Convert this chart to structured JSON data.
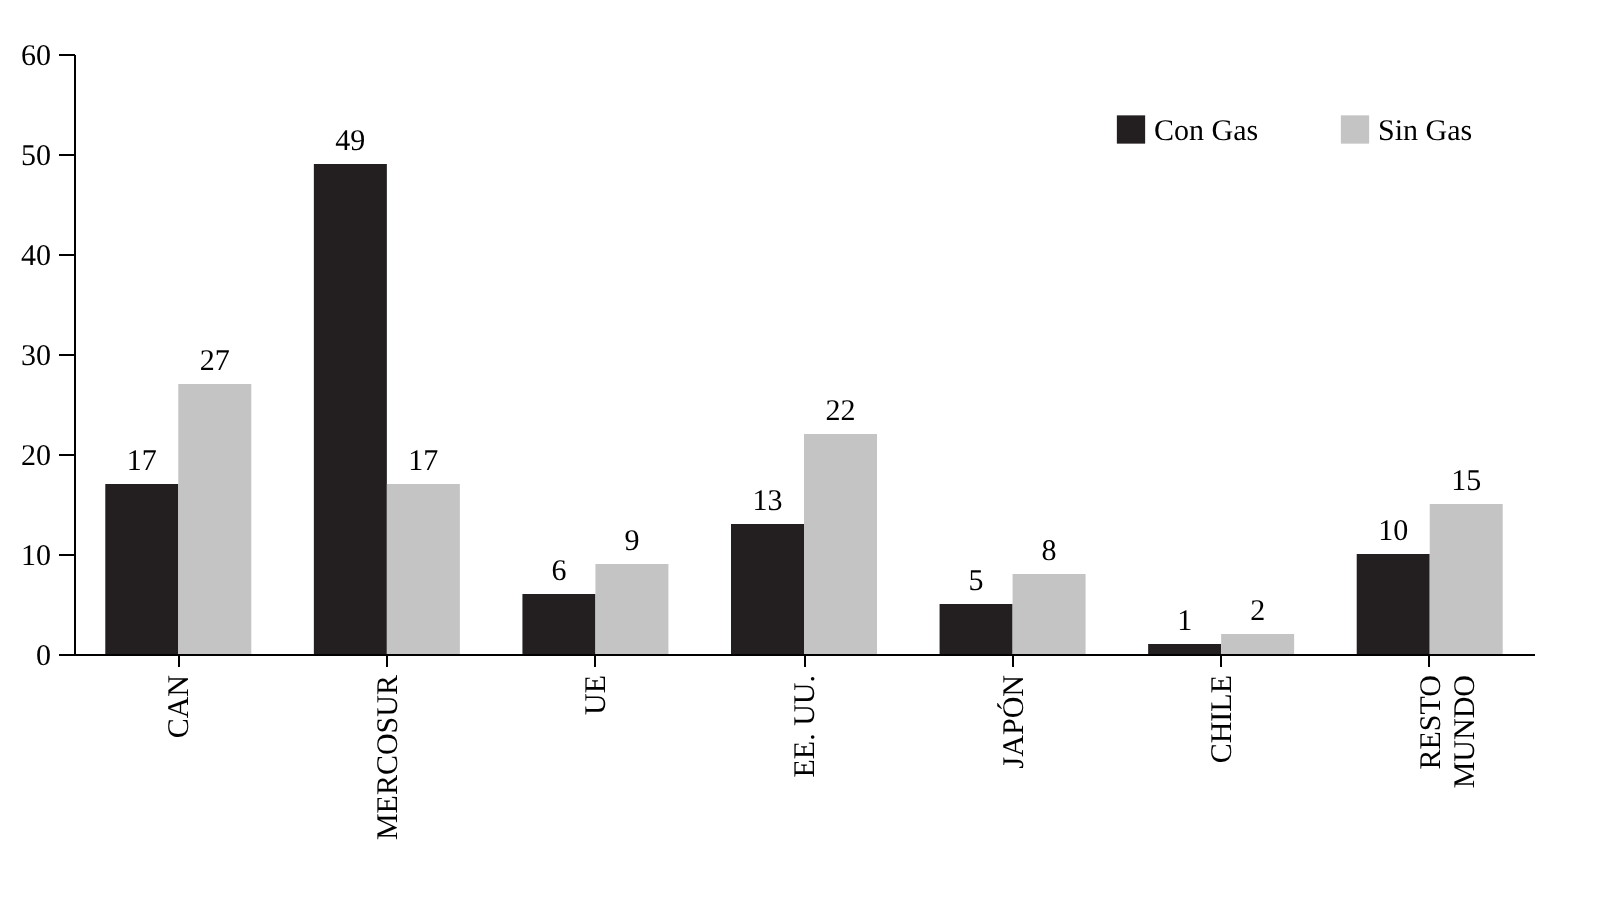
{
  "chart_data": {
    "type": "bar",
    "categories": [
      "CAN",
      "MERCOSUR",
      "UE",
      "EE. UU.",
      "JAPÓN",
      "CHILE",
      "RESTO\nMUNDO"
    ],
    "series": [
      {
        "name": "Con Gas",
        "color": "#231f20",
        "values": [
          17,
          49,
          6,
          13,
          5,
          1,
          10
        ]
      },
      {
        "name": "Sin Gas",
        "color": "#c4c4c4",
        "values": [
          27,
          17,
          9,
          22,
          8,
          2,
          15
        ]
      }
    ],
    "ylim": [
      0,
      60
    ],
    "yticks": [
      0,
      10,
      20,
      30,
      40,
      50,
      60
    ],
    "data_labels": true,
    "grid": false,
    "legend": "top right"
  }
}
